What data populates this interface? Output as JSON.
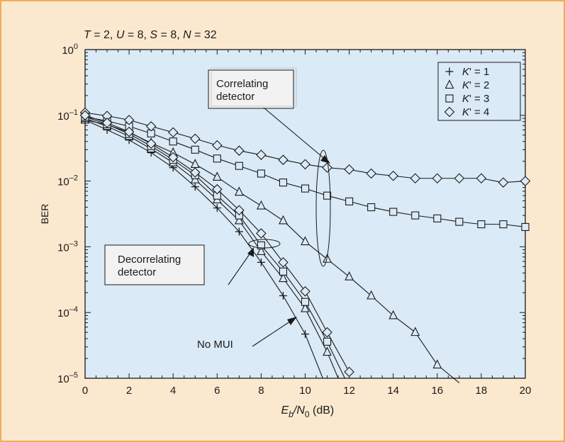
{
  "chart_data": {
    "type": "line",
    "title": "T = 2, U = 8, S = 8, N = 32",
    "title_parts": [
      {
        "t": "T",
        "italic": true
      },
      {
        "t": " = 2, ",
        "italic": false
      },
      {
        "t": "U",
        "italic": true
      },
      {
        "t": " = 8, ",
        "italic": false
      },
      {
        "t": "S",
        "italic": true
      },
      {
        "t": " = 8, ",
        "italic": false
      },
      {
        "t": "N",
        "italic": true
      },
      {
        "t": " = 32",
        "italic": false
      }
    ],
    "xlabel": "Eb/N0 (dB)",
    "xlabel_parts": [
      {
        "t": "E",
        "italic": true,
        "shift": 0
      },
      {
        "t": "b",
        "italic": true,
        "shift": 1
      },
      {
        "t": "/",
        "italic": true,
        "shift": 0
      },
      {
        "t": "N",
        "italic": true,
        "shift": 0
      },
      {
        "t": "0",
        "italic": false,
        "shift": 1
      },
      {
        "t": " (dB)",
        "italic": false,
        "shift": 0
      }
    ],
    "ylabel": "BER",
    "y_scale": "log",
    "xlim": [
      0,
      20
    ],
    "ylim": [
      1e-05,
      1
    ],
    "x_ticks": [
      0,
      2,
      4,
      6,
      8,
      10,
      12,
      14,
      16,
      18,
      20
    ],
    "y_ticks": [
      {
        "value": 1,
        "base": "10",
        "exp": "0"
      },
      {
        "value": 0.1,
        "base": "10",
        "exp": "–1"
      },
      {
        "value": 0.01,
        "base": "10",
        "exp": "–2"
      },
      {
        "value": 0.001,
        "base": "10",
        "exp": "–3"
      },
      {
        "value": 0.0001,
        "base": "10",
        "exp": "–4"
      },
      {
        "value": 1e-05,
        "base": "10",
        "exp": "–5"
      }
    ],
    "grid": false,
    "legend_position": "top-right",
    "legend": [
      {
        "marker": "plus",
        "label_prefix": "K",
        "label_suffix": "' = 1"
      },
      {
        "marker": "triangle",
        "label_prefix": "K",
        "label_suffix": "' = 2"
      },
      {
        "marker": "square",
        "label_prefix": "K",
        "label_suffix": "' = 3"
      },
      {
        "marker": "diamond",
        "label_prefix": "K",
        "label_suffix": "' = 4"
      }
    ],
    "series": [
      {
        "detector": "correlating",
        "marker": "triangle",
        "x": [
          0,
          1,
          2,
          3,
          4,
          5,
          6,
          7,
          8,
          9,
          10,
          11,
          12,
          13,
          14,
          15,
          16,
          17
        ],
        "y": [
          0.085,
          0.072,
          0.055,
          0.038,
          0.027,
          0.018,
          0.0115,
          0.0068,
          0.0042,
          0.0025,
          0.0012,
          0.00065,
          0.00035,
          0.00018,
          9e-05,
          5e-05,
          1.6e-05,
          8.5e-06
        ]
      },
      {
        "detector": "correlating",
        "marker": "square",
        "x": [
          0,
          1,
          2,
          3,
          4,
          5,
          6,
          7,
          8,
          9,
          10,
          11,
          12,
          13,
          14,
          15,
          16,
          17,
          18,
          19,
          20
        ],
        "y": [
          0.095,
          0.082,
          0.068,
          0.053,
          0.04,
          0.03,
          0.022,
          0.017,
          0.013,
          0.0095,
          0.0077,
          0.006,
          0.0049,
          0.004,
          0.0034,
          0.003,
          0.0027,
          0.0024,
          0.0022,
          0.0022,
          0.002
        ]
      },
      {
        "detector": "correlating",
        "marker": "diamond",
        "x": [
          0,
          1,
          2,
          3,
          4,
          5,
          6,
          7,
          8,
          9,
          10,
          11,
          12,
          13,
          14,
          15,
          16,
          17,
          18,
          19,
          20
        ],
        "y": [
          0.11,
          0.098,
          0.085,
          0.068,
          0.055,
          0.044,
          0.035,
          0.029,
          0.025,
          0.021,
          0.018,
          0.016,
          0.015,
          0.013,
          0.012,
          0.011,
          0.011,
          0.011,
          0.011,
          0.0095,
          0.01
        ]
      },
      {
        "detector": "none",
        "marker": "plus",
        "x": [
          0,
          1,
          2,
          3,
          4,
          5,
          6,
          7,
          8,
          9,
          10,
          10.8
        ],
        "y": [
          0.085,
          0.06,
          0.042,
          0.027,
          0.016,
          0.0082,
          0.0039,
          0.0017,
          0.00058,
          0.00018,
          4.7e-05,
          1e-05
        ]
      },
      {
        "detector": "decorrelating",
        "marker": "triangle",
        "x": [
          0,
          1,
          2,
          3,
          4,
          5,
          6,
          7,
          8,
          9,
          10,
          11,
          11.5
        ],
        "y": [
          0.09,
          0.068,
          0.048,
          0.031,
          0.019,
          0.0105,
          0.0052,
          0.0025,
          0.00085,
          0.00033,
          0.000115,
          2.5e-05,
          1e-05
        ]
      },
      {
        "detector": "decorrelating",
        "marker": "square",
        "x": [
          0,
          1,
          2,
          3,
          4,
          5,
          6,
          7,
          8,
          9,
          10,
          11,
          11.8
        ],
        "y": [
          0.095,
          0.073,
          0.052,
          0.034,
          0.021,
          0.0123,
          0.006,
          0.003,
          0.00105,
          0.00042,
          0.000145,
          3.6e-05,
          1e-05
        ]
      },
      {
        "detector": "decorrelating",
        "marker": "diamond",
        "x": [
          0,
          1,
          2,
          3,
          4,
          5,
          6,
          7,
          8,
          9,
          10,
          11,
          12
        ],
        "y": [
          0.1,
          0.077,
          0.056,
          0.037,
          0.023,
          0.0135,
          0.0075,
          0.0036,
          0.0016,
          0.00058,
          0.00021,
          5e-05,
          1.25e-05
        ]
      }
    ],
    "annotations": [
      {
        "id": "correlating-detector",
        "lines": [
          "Correlating",
          "detector"
        ]
      },
      {
        "id": "decorrelating-detector",
        "lines": [
          "Decorrelating",
          "detector"
        ]
      },
      {
        "id": "no-mui",
        "lines": [
          "No MUI"
        ]
      }
    ],
    "colors": {
      "panel": "#fbe9cf",
      "panel_border": "#f0ad57",
      "plot": "#daeaf6",
      "ink": "#1a1a1a",
      "box": "#f2f2f2"
    }
  }
}
